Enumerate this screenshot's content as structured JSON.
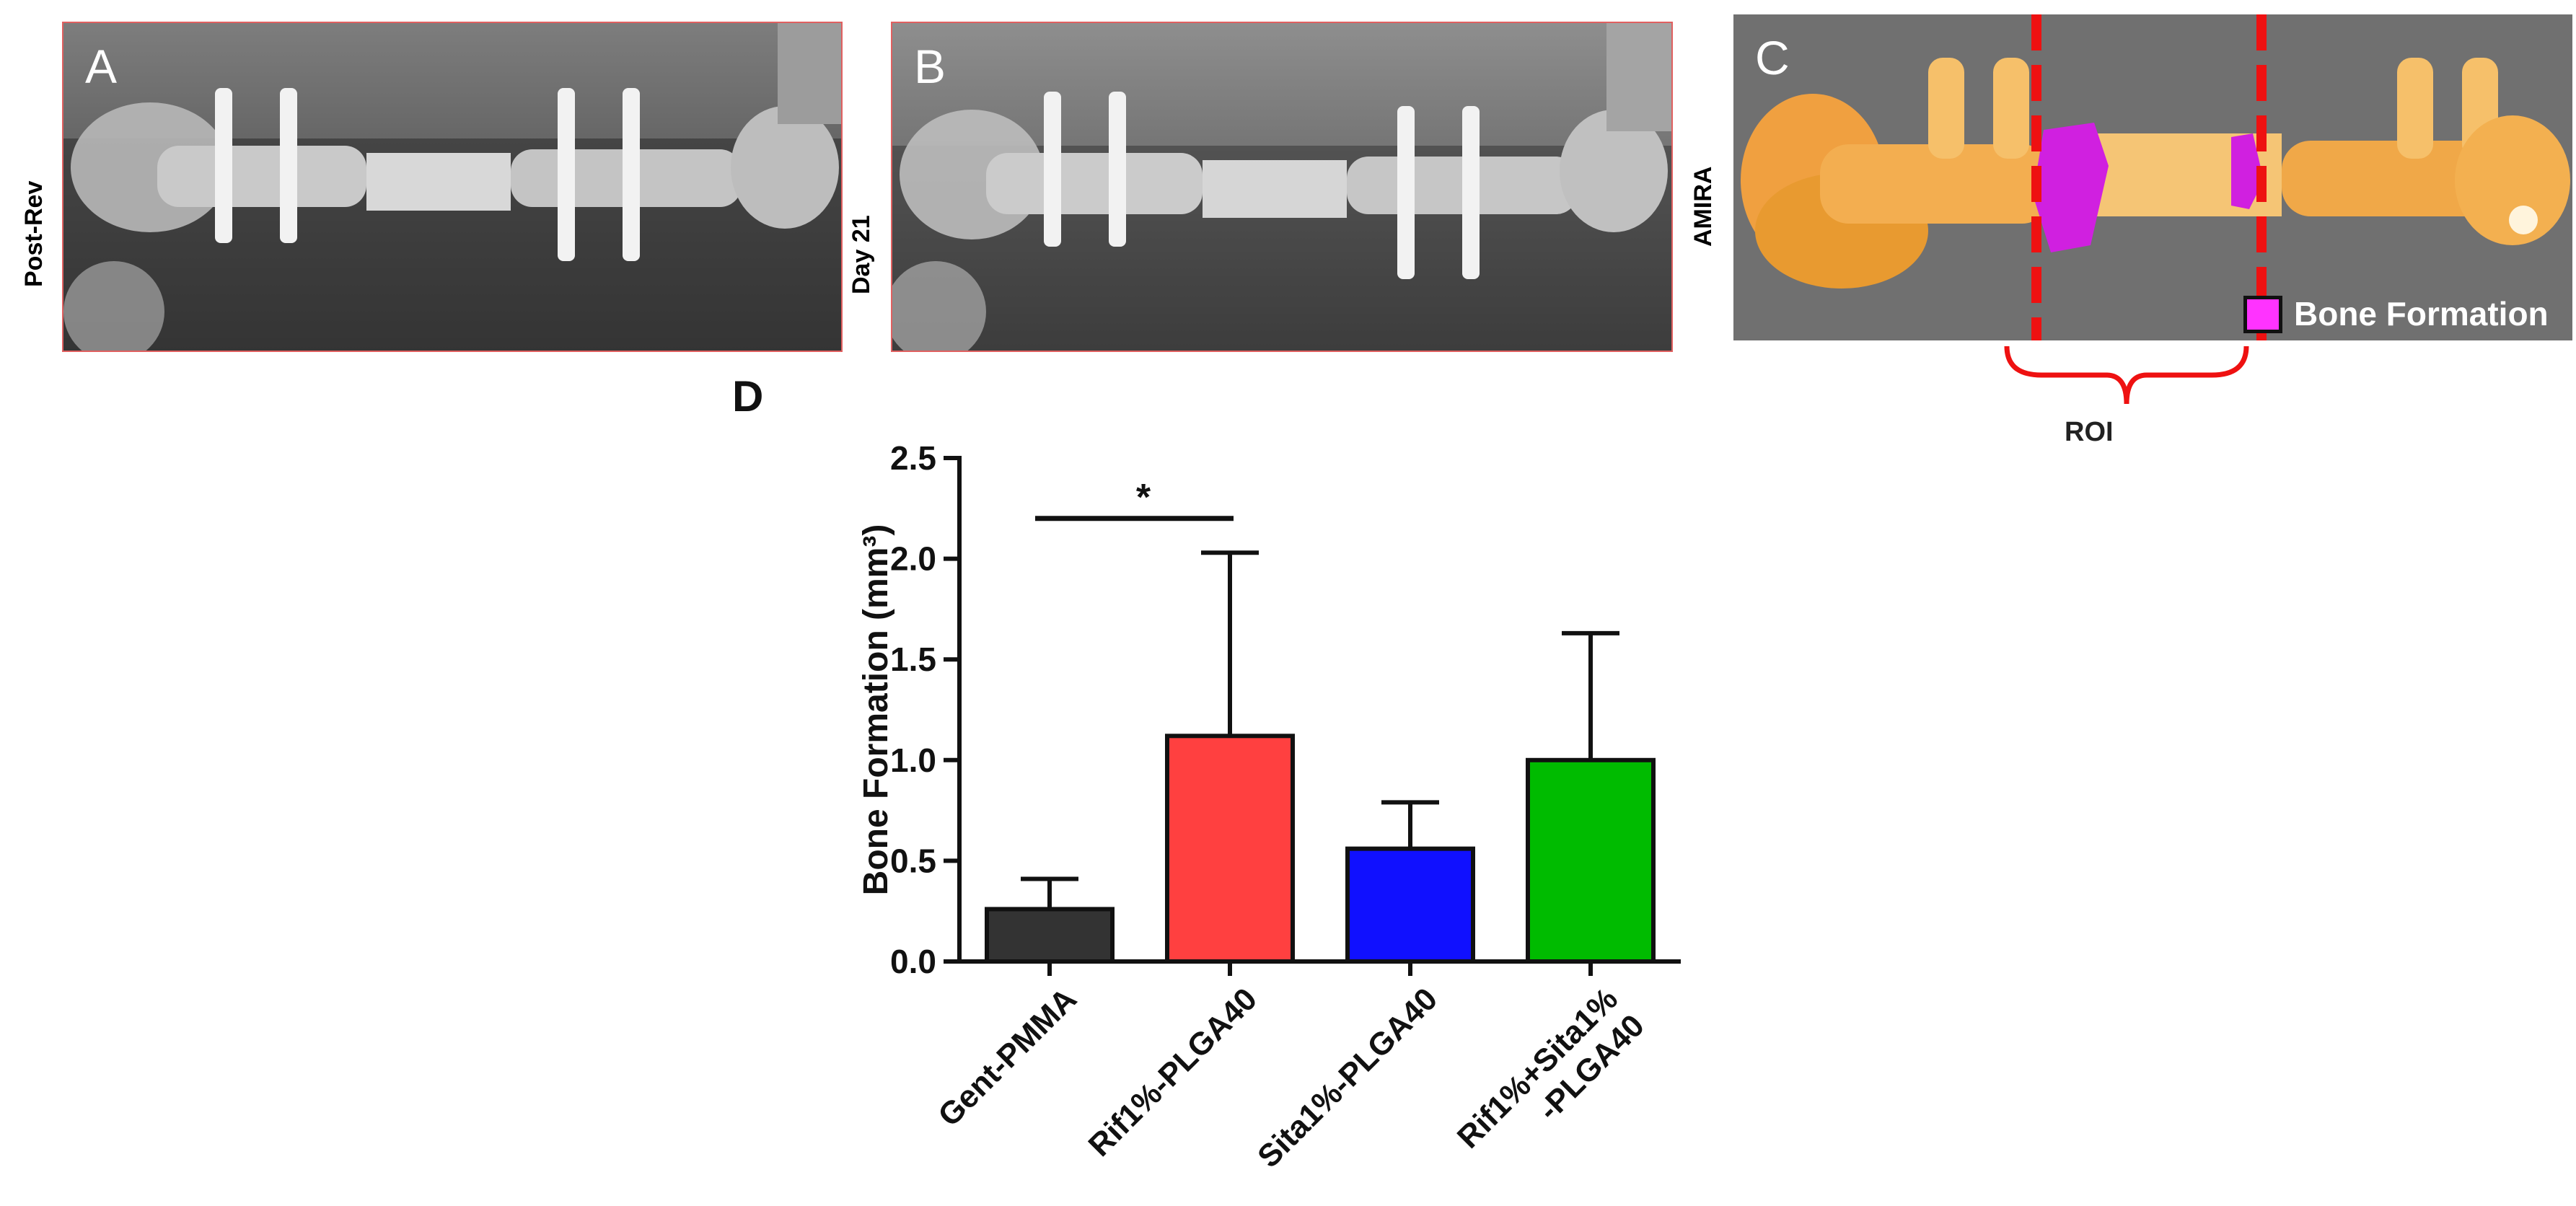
{
  "panels": {
    "a": {
      "letter": "A",
      "side_label": "Post-Rev"
    },
    "b": {
      "letter": "B",
      "side_label": "Day 21"
    },
    "c": {
      "letter": "C",
      "side_label": "AMIRA",
      "legend": "Bone Formation",
      "roi": "ROI"
    },
    "d": {
      "letter": "D"
    }
  },
  "colors": {
    "bone": "#f0a040",
    "bone_formation": "#d020e0",
    "roi_line": "#ee1111"
  },
  "chart_data": {
    "type": "bar",
    "title": "",
    "xlabel": "",
    "ylabel": "Bone Formation (mm³)",
    "ylim": [
      0,
      2.5
    ],
    "yticks": [
      "0.0",
      "0.5",
      "1.0",
      "1.5",
      "2.0",
      "2.5"
    ],
    "categories": [
      "Gent-PMMA",
      "Rif1%-PLGA40",
      "Sita1%-PLGA40",
      "Rif1%+Sita1% -PLGA40"
    ],
    "values": [
      0.26,
      1.12,
      0.56,
      1.0
    ],
    "errors": [
      0.15,
      0.91,
      0.23,
      0.63
    ],
    "bar_colors": [
      "#333333",
      "#ff4040",
      "#1010ff",
      "#00bb00"
    ],
    "significance": {
      "from": 0,
      "to": 1,
      "label": "*",
      "level": 2.2
    }
  }
}
